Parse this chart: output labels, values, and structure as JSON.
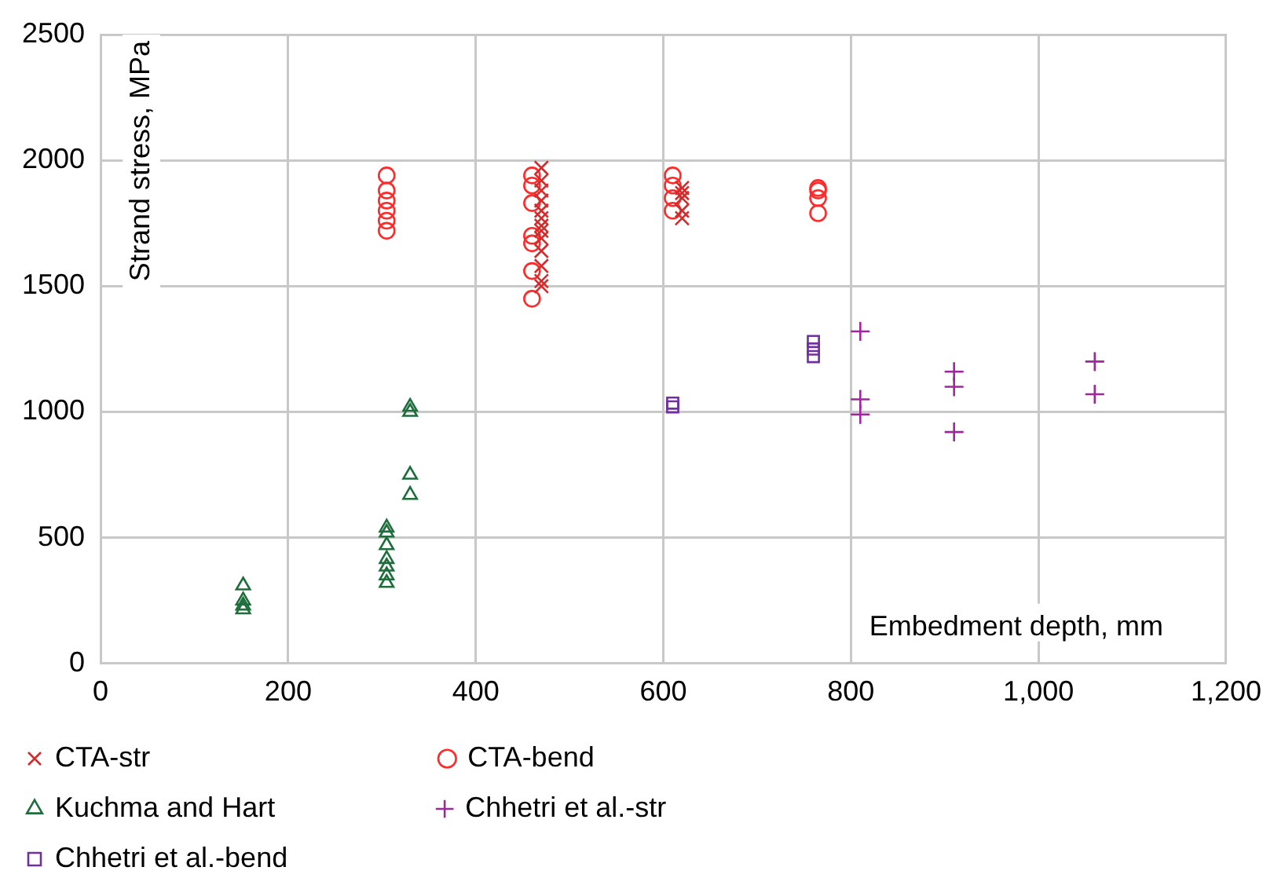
{
  "chart_data": {
    "type": "scatter",
    "xlabel": "Embedment depth, mm",
    "ylabel": "Strand stress, MPa",
    "xlim": [
      0,
      1200
    ],
    "xticks": [
      0,
      200,
      400,
      600,
      800,
      {
        "value": 1000,
        "label": "1,000"
      },
      {
        "value": 1200,
        "label": "1,200"
      }
    ],
    "ylim": [
      0,
      2500
    ],
    "yticks": [
      0,
      500,
      1000,
      1500,
      2000,
      2500
    ],
    "grid": true,
    "legend": "bottom",
    "series": [
      {
        "name": "CTA-str",
        "color": "#d42c2c",
        "marker": "cross",
        "x": [
          470,
          470,
          470,
          470,
          470,
          470,
          470,
          470,
          470,
          470,
          470,
          470,
          470,
          620,
          620,
          620,
          620,
          620
        ],
        "values": [
          1970,
          1920,
          1880,
          1840,
          1800,
          1770,
          1740,
          1720,
          1690,
          1640,
          1580,
          1520,
          1500,
          1890,
          1870,
          1850,
          1800,
          1770
        ]
      },
      {
        "name": "CTA-bend",
        "color": "#ff2a2a",
        "marker": "circle",
        "x": [
          305,
          305,
          305,
          305,
          305,
          305,
          460,
          460,
          460,
          460,
          460,
          460,
          460,
          610,
          610,
          610,
          610,
          765,
          765,
          765,
          765
        ],
        "values": [
          1940,
          1880,
          1840,
          1800,
          1760,
          1720,
          1940,
          1900,
          1830,
          1700,
          1670,
          1560,
          1450,
          1940,
          1900,
          1850,
          1800,
          1890,
          1880,
          1850,
          1790
        ]
      },
      {
        "name": "Kuchma and Hart",
        "color": "#1e6e3c",
        "marker": "triangle",
        "x": [
          152,
          152,
          152,
          152,
          305,
          305,
          305,
          305,
          305,
          305,
          305,
          330,
          330,
          330,
          330
        ],
        "values": [
          310,
          250,
          230,
          215,
          540,
          520,
          470,
          415,
          385,
          350,
          320,
          1020,
          1000,
          750,
          670
        ]
      },
      {
        "name": "Chhetri et al.-str",
        "color": "#a0269e",
        "marker": "plus",
        "x": [
          810,
          810,
          810,
          910,
          910,
          910,
          1060,
          1060
        ],
        "values": [
          1320,
          1050,
          990,
          1160,
          1100,
          920,
          1200,
          1070
        ]
      },
      {
        "name": "Chhetri et al.-bend",
        "color": "#7030a0",
        "marker": "square",
        "x": [
          610,
          610,
          760,
          760,
          760
        ],
        "values": [
          1035,
          1020,
          1280,
          1250,
          1220
        ]
      }
    ]
  }
}
